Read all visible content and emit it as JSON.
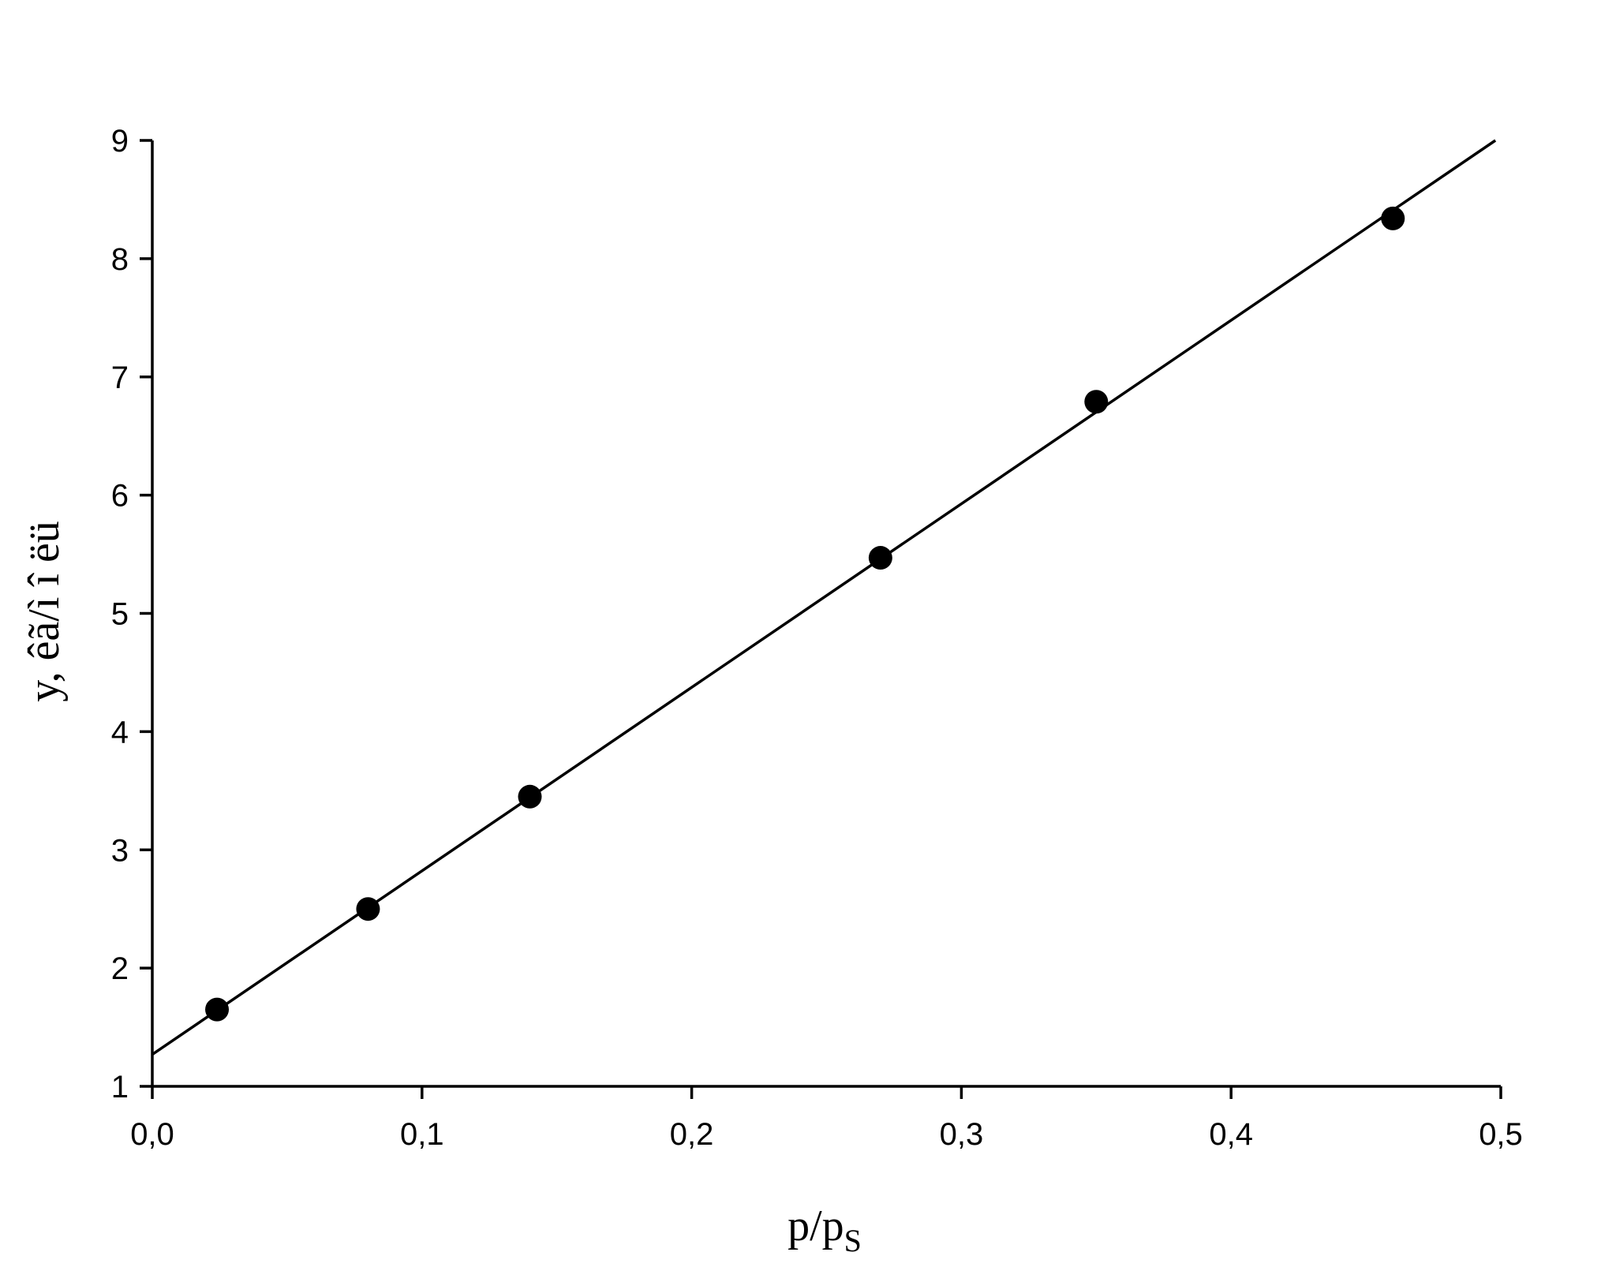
{
  "chart_data": {
    "type": "scatter",
    "xlabel": "p/p",
    "xlabel_subscript": "S",
    "ylabel": "y, êã/ì î ëü",
    "xlim": [
      0.0,
      0.5
    ],
    "ylim": [
      1,
      9
    ],
    "x_ticks": [
      0.0,
      0.1,
      0.2,
      0.3,
      0.4,
      0.5
    ],
    "x_tick_labels": [
      "0,0",
      "0,1",
      "0,2",
      "0,3",
      "0,4",
      "0,5"
    ],
    "y_ticks": [
      1,
      2,
      3,
      4,
      5,
      6,
      7,
      8,
      9
    ],
    "y_tick_labels": [
      "1",
      "2",
      "3",
      "4",
      "5",
      "6",
      "7",
      "8",
      "9"
    ],
    "grid": false,
    "legend": "none",
    "series": [
      {
        "marker": "filled-circle",
        "color": "#000000",
        "x": [
          0.024,
          0.08,
          0.14,
          0.27,
          0.35,
          0.46
        ],
        "y": [
          1.65,
          2.5,
          3.45,
          5.47,
          6.79,
          8.34
        ]
      }
    ],
    "fit_line": {
      "color": "#000000",
      "x": [
        0.0,
        0.498
      ],
      "y": [
        1.27,
        9.0
      ]
    }
  }
}
